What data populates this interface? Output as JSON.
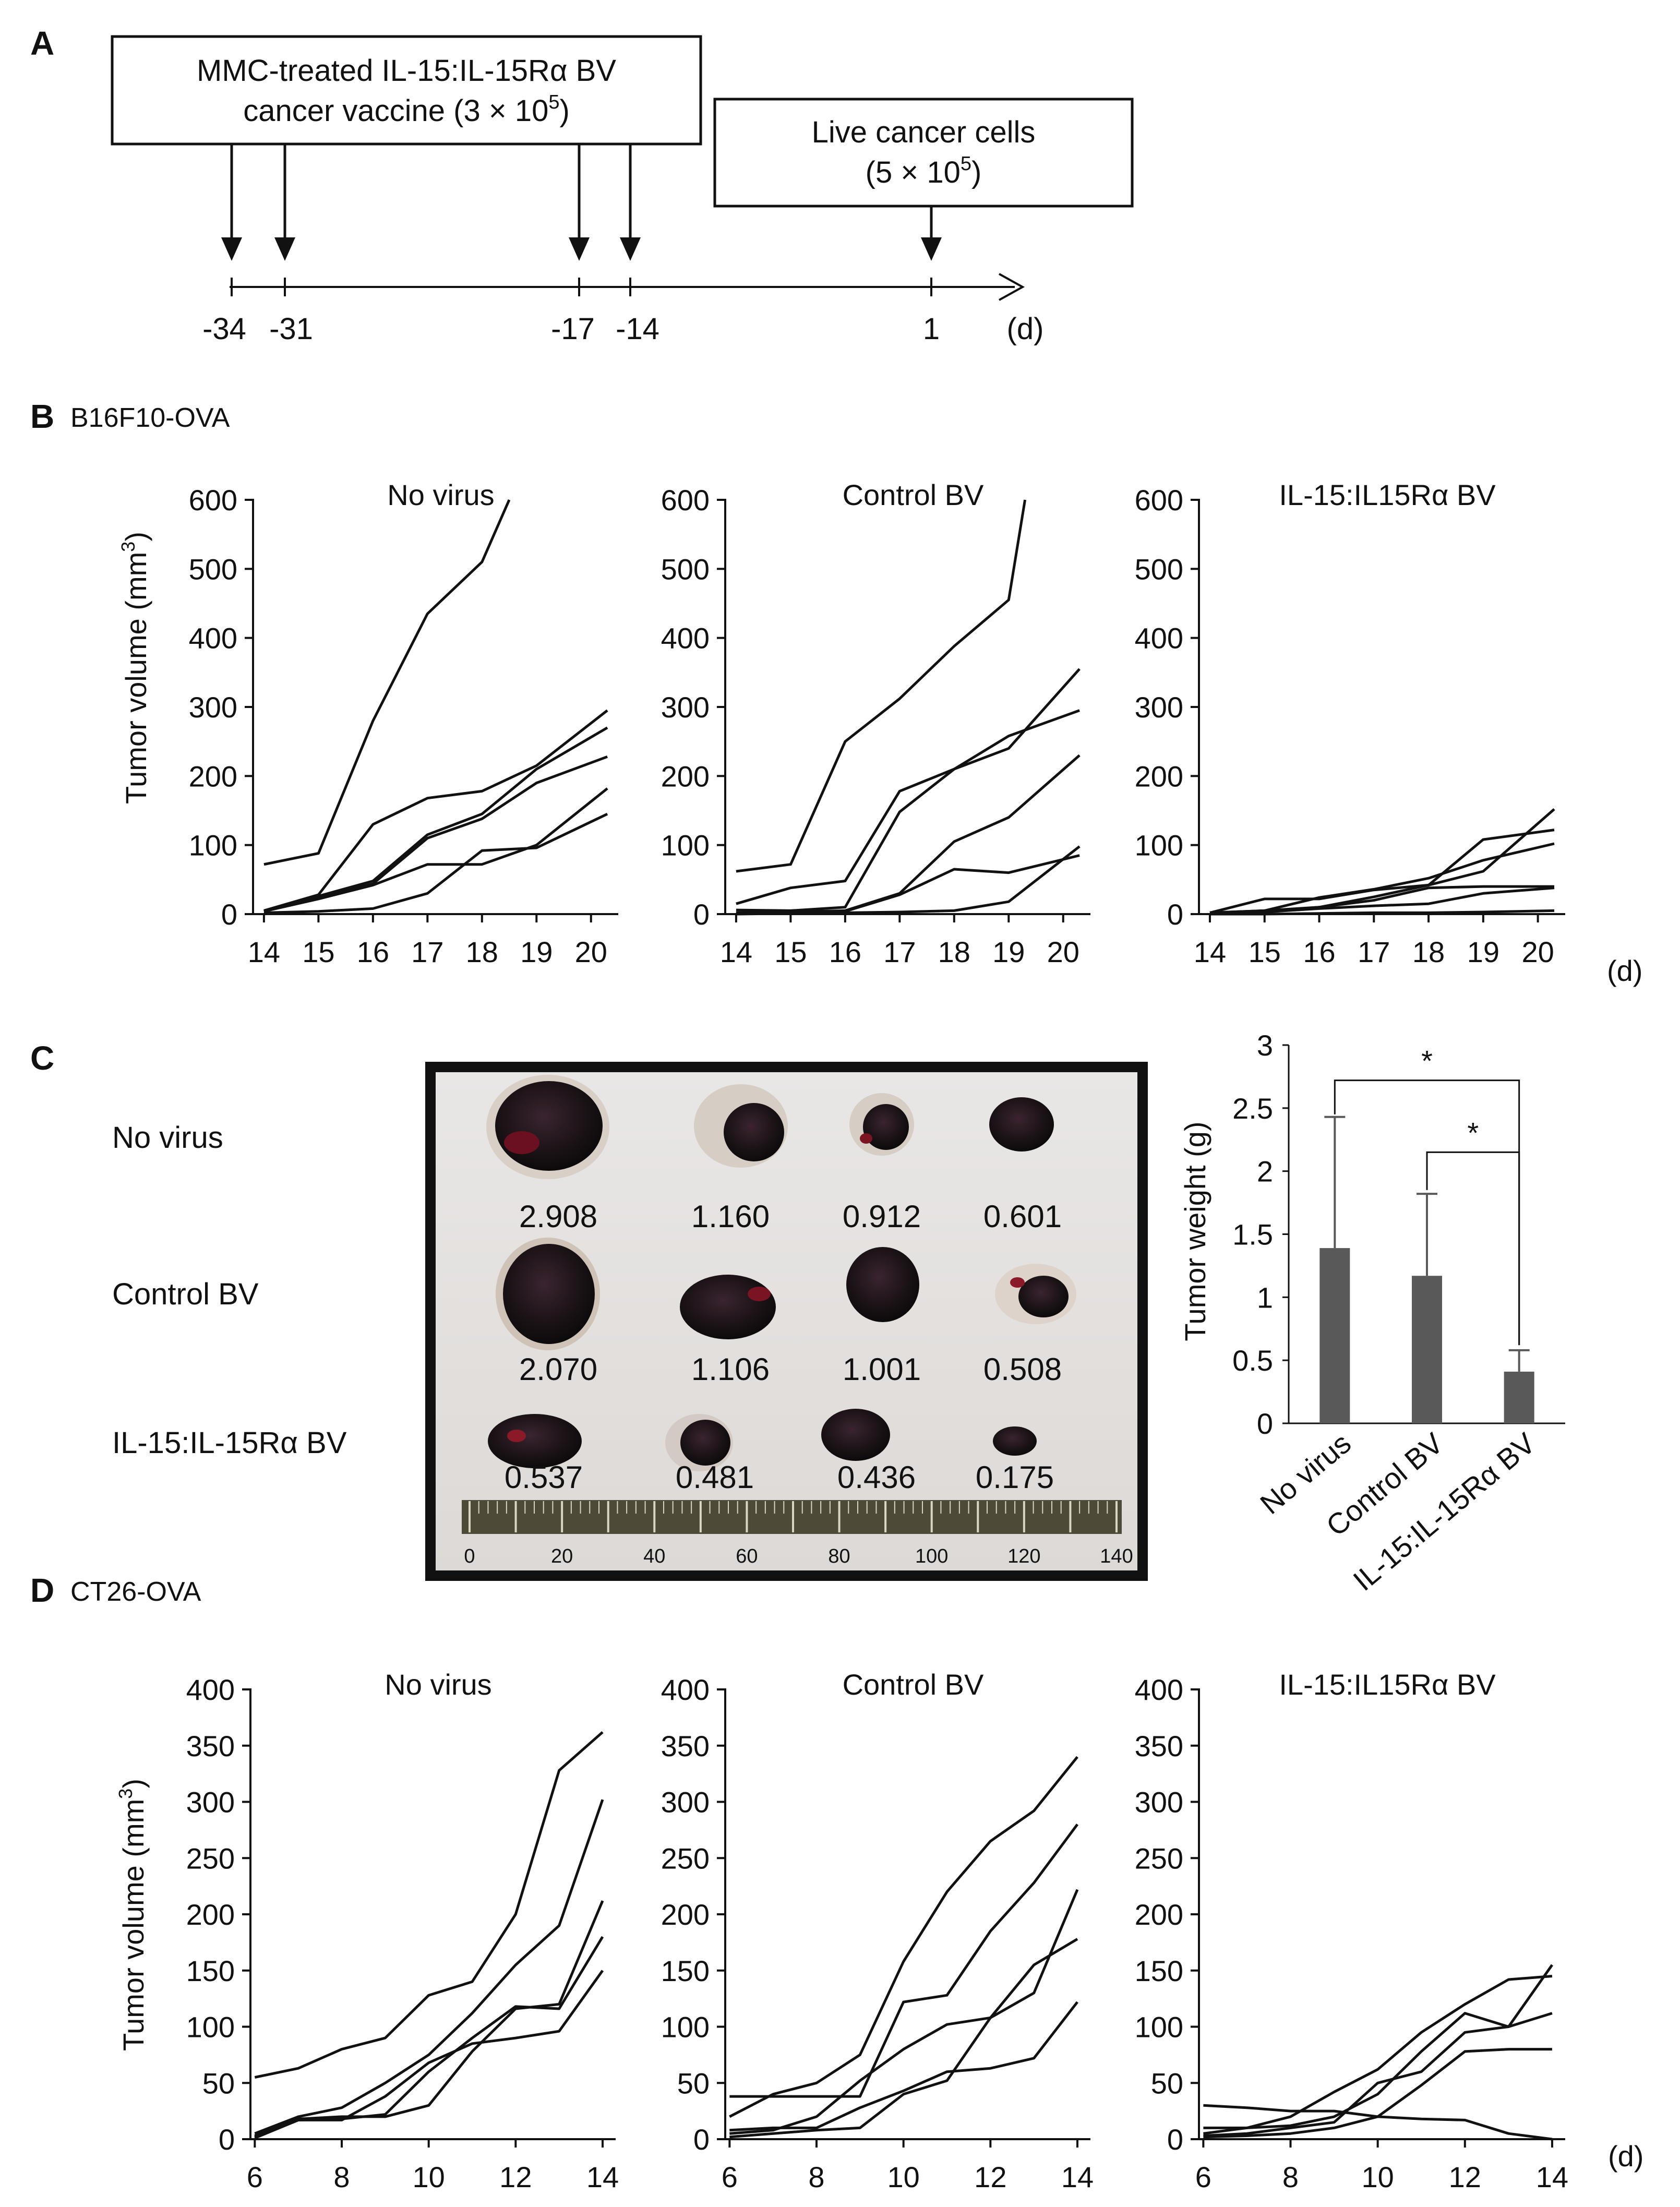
{
  "panel_letters": {
    "a": "A",
    "b": "B",
    "c": "C",
    "d": "D"
  },
  "panel_a": {
    "vaccine_box": {
      "line1": "MMC-treated IL-15:IL-15Rα BV",
      "line2": "cancer vaccine (3 × 10",
      "line2_sup": "5",
      "line2_end": ")"
    },
    "cells_box": {
      "line1": "Live cancer cells",
      "line2": "(5 × 10",
      "line2_sup": "5",
      "line2_end": ")"
    },
    "timeline_labels": [
      "-34",
      "-31",
      "-17",
      "-14",
      "1"
    ],
    "unit": "(d)"
  },
  "panel_b_title": "B16F10-OVA",
  "panel_d_title": "CT26-OVA",
  "y_axis_title_main": "Tumor volume (mm",
  "y_axis_title_sup": "3",
  "y_axis_title_end": ")",
  "day_unit": "(d)",
  "panel_c": {
    "row_labels": [
      "No virus",
      "Control BV",
      "IL-15:IL-15Rα BV"
    ],
    "weights": [
      [
        "2.908",
        "1.160",
        "0.912",
        "0.601"
      ],
      [
        "2.070",
        "1.106",
        "1.001",
        "0.508"
      ],
      [
        "0.537",
        "0.481",
        "0.436",
        "0.175"
      ]
    ],
    "ruler_labels": [
      "0",
      "20",
      "40",
      "60",
      "80",
      "100",
      "120",
      "140"
    ],
    "significance": [
      "*",
      "*"
    ]
  },
  "chart_data": [
    {
      "type": "line",
      "id": "b16-no-virus",
      "title": "No virus",
      "xlabel": "",
      "ylabel": "Tumor volume (mm3)",
      "xlim": [
        13.8,
        20.5
      ],
      "ylim": [
        0,
        600
      ],
      "x_ticks": [
        "14",
        "15",
        "16",
        "17",
        "18",
        "19",
        "20"
      ],
      "y_ticks": [
        "0",
        "100",
        "200",
        "300",
        "400",
        "500",
        "600"
      ],
      "series": [
        {
          "x": [
            14,
            15,
            16,
            17,
            18,
            18.5
          ],
          "values": [
            72,
            88,
            280,
            435,
            510,
            600
          ]
        },
        {
          "x": [
            14,
            15,
            16,
            17,
            18,
            19,
            20.3
          ],
          "values": [
            5,
            28,
            130,
            168,
            178,
            215,
            295
          ]
        },
        {
          "x": [
            14,
            15,
            16,
            17,
            18,
            19,
            20.3
          ],
          "values": [
            5,
            26,
            48,
            115,
            145,
            210,
            270
          ]
        },
        {
          "x": [
            14,
            15,
            16,
            17,
            18,
            19,
            20.3
          ],
          "values": [
            4,
            24,
            44,
            110,
            138,
            190,
            228
          ]
        },
        {
          "x": [
            14,
            15,
            16,
            17,
            18,
            19,
            20.3
          ],
          "values": [
            4,
            22,
            42,
            72,
            72,
            100,
            182
          ]
        },
        {
          "x": [
            14,
            15,
            16,
            17,
            18,
            19,
            20.3
          ],
          "values": [
            2,
            4,
            8,
            30,
            92,
            96,
            145
          ]
        }
      ]
    },
    {
      "type": "line",
      "id": "b16-control",
      "title": "Control BV",
      "xlabel": "",
      "ylabel": "",
      "xlim": [
        13.8,
        20.5
      ],
      "ylim": [
        0,
        600
      ],
      "x_ticks": [
        "14",
        "15",
        "16",
        "17",
        "18",
        "19",
        "20"
      ],
      "y_ticks": [
        "0",
        "100",
        "200",
        "300",
        "400",
        "500",
        "600"
      ],
      "series": [
        {
          "x": [
            14,
            15,
            16,
            17,
            18,
            19,
            19.3
          ],
          "values": [
            62,
            72,
            250,
            312,
            388,
            455,
            600
          ]
        },
        {
          "x": [
            14,
            15,
            16,
            17,
            18,
            19,
            20.3
          ],
          "values": [
            15,
            38,
            48,
            178,
            210,
            240,
            355
          ]
        },
        {
          "x": [
            14,
            15,
            16,
            17,
            18,
            19,
            20.3
          ],
          "values": [
            6,
            5,
            10,
            148,
            210,
            258,
            295
          ]
        },
        {
          "x": [
            14,
            15,
            16,
            17,
            18,
            19,
            20.3
          ],
          "values": [
            2,
            3,
            5,
            30,
            105,
            140,
            230
          ]
        },
        {
          "x": [
            14,
            15,
            16,
            17,
            18,
            19,
            20.3
          ],
          "values": [
            2,
            3,
            4,
            28,
            65,
            60,
            85
          ]
        },
        {
          "x": [
            14,
            15,
            16,
            17,
            18,
            19,
            20.3
          ],
          "values": [
            0,
            1,
            2,
            3,
            5,
            18,
            98
          ]
        }
      ]
    },
    {
      "type": "line",
      "id": "b16-il15",
      "title": "IL-15:IL15Rα BV",
      "xlabel": "",
      "ylabel": "",
      "xlim": [
        13.8,
        20.5
      ],
      "ylim": [
        0,
        600
      ],
      "x_ticks": [
        "14",
        "15",
        "16",
        "17",
        "18",
        "19",
        "20"
      ],
      "y_ticks": [
        "0",
        "100",
        "200",
        "300",
        "400",
        "500",
        "600"
      ],
      "series": [
        {
          "x": [
            14,
            15,
            16,
            17,
            18,
            19,
            20.3
          ],
          "values": [
            2,
            22,
            22,
            35,
            42,
            108,
            122
          ]
        },
        {
          "x": [
            14,
            15,
            16,
            17,
            18,
            19,
            20.3
          ],
          "values": [
            2,
            5,
            24,
            36,
            52,
            78,
            102
          ]
        },
        {
          "x": [
            14,
            15,
            16,
            17,
            18,
            19,
            20.3
          ],
          "values": [
            2,
            5,
            10,
            25,
            42,
            62,
            152
          ]
        },
        {
          "x": [
            14,
            15,
            16,
            17,
            18,
            19,
            20.3
          ],
          "values": [
            2,
            4,
            10,
            20,
            38,
            40,
            40
          ]
        },
        {
          "x": [
            14,
            15,
            16,
            17,
            18,
            19,
            20.3
          ],
          "values": [
            2,
            3,
            8,
            12,
            15,
            30,
            38
          ]
        },
        {
          "x": [
            14,
            15,
            16,
            17,
            18,
            19,
            20.3
          ],
          "values": [
            0,
            0,
            1,
            2,
            2,
            3,
            5
          ]
        }
      ]
    },
    {
      "type": "bar",
      "id": "tumor-weight",
      "title": "",
      "xlabel": "",
      "ylabel": "Tumor weight (g)",
      "ylim": [
        0,
        3
      ],
      "y_ticks": [
        "0",
        "0.5",
        "1",
        "1.5",
        "2",
        "2.5",
        "3"
      ],
      "categories": [
        "No virus",
        "Control BV",
        "IL-15:IL-15Rα BV"
      ],
      "values": [
        1.39,
        1.17,
        0.41
      ],
      "error_upper": [
        1.04,
        0.65,
        0.17
      ],
      "significance": [
        [
          "No virus",
          "IL-15:IL-15Rα BV",
          "*"
        ],
        [
          "Control BV",
          "IL-15:IL-15Rα BV",
          "*"
        ]
      ]
    },
    {
      "type": "line",
      "id": "ct26-no-virus",
      "title": "No virus",
      "xlabel": "",
      "ylabel": "Tumor volume (mm3)",
      "xlim": [
        5.9,
        14.3
      ],
      "ylim": [
        0,
        400
      ],
      "x_ticks": [
        "6",
        "8",
        "10",
        "12",
        "14"
      ],
      "y_ticks": [
        "0",
        "50",
        "100",
        "150",
        "200",
        "250",
        "300",
        "350",
        "400"
      ],
      "series": [
        {
          "x": [
            6,
            7,
            8,
            9,
            10,
            11,
            12,
            13,
            14
          ],
          "values": [
            55,
            63,
            80,
            90,
            128,
            140,
            200,
            328,
            362
          ]
        },
        {
          "x": [
            6,
            7,
            8,
            9,
            10,
            11,
            12,
            13,
            14
          ],
          "values": [
            5,
            20,
            28,
            50,
            75,
            112,
            155,
            190,
            302
          ]
        },
        {
          "x": [
            6,
            7,
            8,
            9,
            10,
            11,
            12,
            13,
            14
          ],
          "values": [
            3,
            18,
            20,
            20,
            30,
            78,
            116,
            120,
            212
          ]
        },
        {
          "x": [
            6,
            7,
            8,
            9,
            10,
            11,
            12,
            13,
            14
          ],
          "values": [
            2,
            17,
            18,
            22,
            60,
            90,
            118,
            116,
            180
          ]
        },
        {
          "x": [
            6,
            7,
            8,
            9,
            10,
            11,
            12,
            13,
            14
          ],
          "values": [
            1,
            17,
            17,
            38,
            68,
            85,
            90,
            96,
            150
          ]
        }
      ]
    },
    {
      "type": "line",
      "id": "ct26-control",
      "title": "Control BV",
      "xlabel": "",
      "ylabel": "",
      "xlim": [
        5.9,
        14.3
      ],
      "ylim": [
        0,
        400
      ],
      "x_ticks": [
        "6",
        "8",
        "10",
        "12",
        "14"
      ],
      "y_ticks": [
        "0",
        "50",
        "100",
        "150",
        "200",
        "250",
        "300",
        "350",
        "400"
      ],
      "series": [
        {
          "x": [
            6,
            7,
            8,
            9,
            10,
            11,
            12,
            13,
            14
          ],
          "values": [
            20,
            40,
            50,
            75,
            158,
            220,
            265,
            292,
            340
          ]
        },
        {
          "x": [
            6,
            7,
            8,
            9,
            10,
            11,
            12,
            13,
            14
          ],
          "values": [
            38,
            38,
            38,
            38,
            122,
            128,
            185,
            228,
            280
          ]
        },
        {
          "x": [
            6,
            7,
            8,
            9,
            10,
            11,
            12,
            13,
            14
          ],
          "values": [
            5,
            8,
            20,
            52,
            80,
            102,
            108,
            130,
            222
          ]
        },
        {
          "x": [
            6,
            7,
            8,
            9,
            10,
            11,
            12,
            13,
            14
          ],
          "values": [
            2,
            5,
            8,
            10,
            40,
            52,
            108,
            155,
            178
          ]
        },
        {
          "x": [
            6,
            7,
            8,
            9,
            10,
            11,
            12,
            13,
            14
          ],
          "values": [
            8,
            10,
            10,
            28,
            43,
            60,
            63,
            72,
            122
          ]
        }
      ]
    },
    {
      "type": "line",
      "id": "ct26-il15",
      "title": "IL-15:IL15Rα BV",
      "xlabel": "",
      "ylabel": "",
      "xlim": [
        5.9,
        14.3
      ],
      "ylim": [
        0,
        400
      ],
      "x_ticks": [
        "6",
        "8",
        "10",
        "12",
        "14"
      ],
      "y_ticks": [
        "0",
        "50",
        "100",
        "150",
        "200",
        "250",
        "300",
        "350",
        "400"
      ],
      "series": [
        {
          "x": [
            6,
            7,
            8,
            9,
            10,
            11,
            12,
            13,
            14
          ],
          "values": [
            10,
            10,
            20,
            42,
            62,
            95,
            120,
            142,
            145
          ]
        },
        {
          "x": [
            6,
            7,
            8,
            9,
            10,
            11,
            12,
            13,
            14
          ],
          "values": [
            5,
            10,
            12,
            20,
            40,
            78,
            112,
            100,
            155
          ]
        },
        {
          "x": [
            6,
            7,
            8,
            9,
            10,
            11,
            12,
            13,
            14
          ],
          "values": [
            30,
            28,
            25,
            25,
            20,
            18,
            17,
            5,
            0
          ]
        },
        {
          "x": [
            6,
            7,
            8,
            9,
            10,
            11,
            12,
            13,
            14
          ],
          "values": [
            3,
            5,
            10,
            15,
            50,
            60,
            95,
            100,
            112
          ]
        },
        {
          "x": [
            6,
            7,
            8,
            9,
            10,
            11,
            12,
            13,
            14
          ],
          "values": [
            2,
            3,
            5,
            10,
            20,
            48,
            78,
            80,
            80
          ]
        }
      ]
    }
  ]
}
